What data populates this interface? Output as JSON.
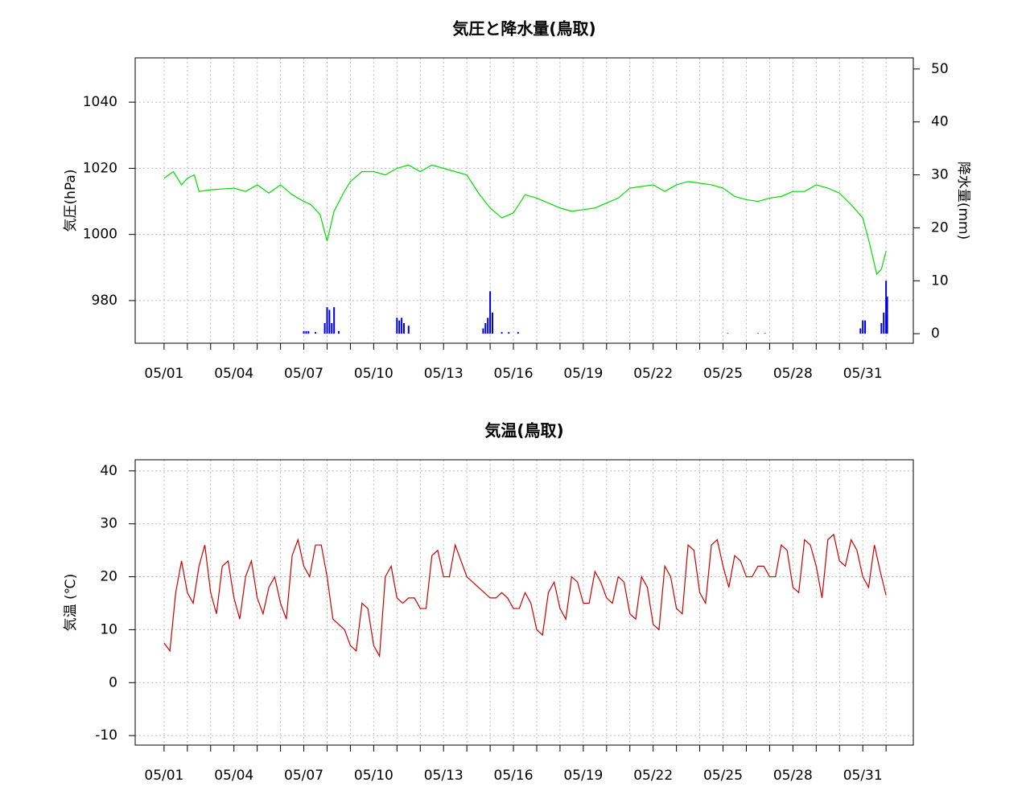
{
  "chart_data": [
    {
      "type": "line",
      "title": "気圧と降水量(鳥取)",
      "ylabel": "気圧(hPa)",
      "y2label": "降水量(mm)",
      "grid": true,
      "xlim": [
        -0.24,
        33.17
      ],
      "ylim": [
        967.1,
        1053.4
      ],
      "y2lim": [
        -1.8,
        52.1
      ],
      "xticks": [
        {
          "value": 1,
          "label": "05/01"
        },
        {
          "value": 2,
          "label": null
        },
        {
          "value": 3,
          "label": null
        },
        {
          "value": 4,
          "label": "05/04"
        },
        {
          "value": 5,
          "label": null
        },
        {
          "value": 6,
          "label": null
        },
        {
          "value": 7,
          "label": "05/07"
        },
        {
          "value": 8,
          "label": null
        },
        {
          "value": 9,
          "label": null
        },
        {
          "value": 10,
          "label": "05/10"
        },
        {
          "value": 11,
          "label": null
        },
        {
          "value": 12,
          "label": null
        },
        {
          "value": 13,
          "label": "05/13"
        },
        {
          "value": 14,
          "label": null
        },
        {
          "value": 15,
          "label": null
        },
        {
          "value": 16,
          "label": "05/16"
        },
        {
          "value": 17,
          "label": null
        },
        {
          "value": 18,
          "label": null
        },
        {
          "value": 19,
          "label": "05/19"
        },
        {
          "value": 20,
          "label": null
        },
        {
          "value": 21,
          "label": null
        },
        {
          "value": 22,
          "label": "05/22"
        },
        {
          "value": 23,
          "label": null
        },
        {
          "value": 24,
          "label": null
        },
        {
          "value": 25,
          "label": "05/25"
        },
        {
          "value": 26,
          "label": null
        },
        {
          "value": 27,
          "label": null
        },
        {
          "value": 28,
          "label": "05/28"
        },
        {
          "value": 29,
          "label": null
        },
        {
          "value": 30,
          "label": null
        },
        {
          "value": 31,
          "label": "05/31"
        },
        {
          "value": 32,
          "label": null
        }
      ],
      "yticks": [
        980,
        1000,
        1020,
        1040
      ],
      "y2ticks": [
        0,
        10,
        20,
        30,
        40,
        50
      ],
      "series": [
        {
          "type": "line",
          "color": "#00dd00",
          "x": [
            1,
            1.4,
            1.75,
            2,
            2.3,
            2.5,
            3,
            4,
            4.5,
            5,
            5.5,
            6,
            6.5,
            7,
            7.3,
            7.7,
            8,
            8.3,
            8.7,
            9,
            9.5,
            10,
            10.5,
            11,
            11.5,
            12,
            12.5,
            13,
            13.5,
            14,
            14.5,
            15,
            15.5,
            16,
            16.5,
            17,
            17.5,
            18,
            18.5,
            19,
            19.5,
            20,
            20.5,
            21,
            21.5,
            22,
            22.5,
            23,
            23.5,
            24,
            24.5,
            25,
            25.5,
            26,
            26.5,
            27,
            27.5,
            28,
            28.5,
            29,
            29.5,
            30,
            30.5,
            31,
            31.3,
            31.6,
            31.8,
            32
          ],
          "values": [
            1017,
            1019,
            1015,
            1017,
            1018,
            1013,
            1013.5,
            1014,
            1013,
            1015,
            1012.5,
            1015,
            1012,
            1010,
            1009,
            1006,
            998,
            1007,
            1012.5,
            1016,
            1019,
            1019,
            1018,
            1020,
            1021,
            1019,
            1021,
            1020,
            1019,
            1018,
            1012.5,
            1008,
            1005,
            1006.5,
            1012,
            1011,
            1009.5,
            1008,
            1007,
            1007.5,
            1008,
            1009.5,
            1011,
            1014,
            1014.5,
            1015,
            1013,
            1015,
            1016,
            1015.5,
            1015,
            1014,
            1011.5,
            1010.5,
            1010,
            1011,
            1011.5,
            1013,
            1013,
            1015,
            1014,
            1012.5,
            1009,
            1005,
            997,
            988,
            989.5,
            995
          ]
        },
        {
          "type": "bar",
          "axis": "y2",
          "color": "#0000dd",
          "x": [
            7.0,
            7.1,
            7.2,
            7.5,
            7.9,
            8.0,
            8.1,
            8.2,
            8.3,
            8.5,
            11.0,
            11.1,
            11.2,
            11.3,
            11.5,
            14.7,
            14.8,
            14.9,
            15.0,
            15.1,
            15.5,
            15.8,
            16.2,
            25.2,
            26.5,
            26.8,
            30.9,
            31.0,
            31.1,
            31.8,
            31.9,
            32.0,
            32.05
          ],
          "values": [
            0.5,
            0.5,
            0.5,
            0.3,
            2,
            5,
            4.5,
            2,
            5,
            0.5,
            3,
            2.5,
            3,
            2,
            1.5,
            1,
            2,
            3,
            8,
            4,
            0.3,
            0.3,
            0.3,
            0.1,
            0.1,
            0.1,
            1,
            2.5,
            2.5,
            2,
            4,
            10,
            7
          ]
        }
      ]
    },
    {
      "type": "line",
      "title": "気温(鳥取)",
      "ylabel": "気温 (℃)",
      "grid": true,
      "xlim": [
        -0.24,
        33.17
      ],
      "ylim": [
        -11.8,
        42.1
      ],
      "xticks": [
        {
          "value": 1,
          "label": "05/01"
        },
        {
          "value": 2,
          "label": null
        },
        {
          "value": 3,
          "label": null
        },
        {
          "value": 4,
          "label": "05/04"
        },
        {
          "value": 5,
          "label": null
        },
        {
          "value": 6,
          "label": null
        },
        {
          "value": 7,
          "label": "05/07"
        },
        {
          "value": 8,
          "label": null
        },
        {
          "value": 9,
          "label": null
        },
        {
          "value": 10,
          "label": "05/10"
        },
        {
          "value": 11,
          "label": null
        },
        {
          "value": 12,
          "label": null
        },
        {
          "value": 13,
          "label": "05/13"
        },
        {
          "value": 14,
          "label": null
        },
        {
          "value": 15,
          "label": null
        },
        {
          "value": 16,
          "label": "05/16"
        },
        {
          "value": 17,
          "label": null
        },
        {
          "value": 18,
          "label": null
        },
        {
          "value": 19,
          "label": "05/19"
        },
        {
          "value": 20,
          "label": null
        },
        {
          "value": 21,
          "label": null
        },
        {
          "value": 22,
          "label": "05/22"
        },
        {
          "value": 23,
          "label": null
        },
        {
          "value": 24,
          "label": null
        },
        {
          "value": 25,
          "label": "05/25"
        },
        {
          "value": 26,
          "label": null
        },
        {
          "value": 27,
          "label": null
        },
        {
          "value": 28,
          "label": "05/28"
        },
        {
          "value": 29,
          "label": null
        },
        {
          "value": 30,
          "label": null
        },
        {
          "value": 31,
          "label": "05/31"
        },
        {
          "value": 32,
          "label": null
        }
      ],
      "yticks": [
        -10,
        0,
        10,
        20,
        30,
        40
      ],
      "series": [
        {
          "type": "line",
          "color": "#cc0000",
          "x": [
            1,
            1.25,
            1.5,
            1.75,
            2,
            2.25,
            2.5,
            2.75,
            3,
            3.25,
            3.5,
            3.75,
            4,
            4.25,
            4.5,
            4.75,
            5,
            5.25,
            5.5,
            5.75,
            6,
            6.25,
            6.5,
            6.75,
            7,
            7.25,
            7.5,
            7.75,
            8,
            8.25,
            8.5,
            8.75,
            9,
            9.25,
            9.5,
            9.75,
            10,
            10.25,
            10.5,
            10.75,
            11,
            11.25,
            11.5,
            11.75,
            12,
            12.25,
            12.5,
            12.75,
            13,
            13.25,
            13.5,
            13.75,
            14,
            14.25,
            14.5,
            14.75,
            15,
            15.25,
            15.5,
            15.75,
            16,
            16.25,
            16.5,
            16.75,
            17,
            17.25,
            17.5,
            17.75,
            18,
            18.25,
            18.5,
            18.75,
            19,
            19.25,
            19.5,
            19.75,
            20,
            20.25,
            20.5,
            20.75,
            21,
            21.25,
            21.5,
            21.75,
            22,
            22.25,
            22.5,
            22.75,
            23,
            23.25,
            23.5,
            23.75,
            24,
            24.25,
            24.5,
            24.75,
            25,
            25.25,
            25.5,
            25.75,
            26,
            26.25,
            26.5,
            26.75,
            27,
            27.25,
            27.5,
            27.75,
            28,
            28.25,
            28.5,
            28.75,
            29,
            29.25,
            29.5,
            29.75,
            30,
            30.25,
            30.5,
            30.75,
            31,
            31.25,
            31.5,
            31.75,
            32
          ],
          "values": [
            7.5,
            6,
            17,
            23,
            17,
            15,
            22,
            26,
            17,
            13,
            22,
            23,
            16,
            12,
            20,
            23,
            16,
            13,
            18,
            20,
            15,
            12,
            24,
            27,
            22,
            20,
            26,
            26,
            20,
            12,
            11,
            10,
            7,
            6,
            15,
            14,
            7,
            5,
            20,
            22,
            16,
            15,
            16,
            16,
            14,
            14,
            24,
            25,
            20,
            20,
            26,
            23,
            20,
            19,
            18,
            17,
            16,
            16,
            17,
            16,
            14,
            14,
            17,
            15,
            10,
            9,
            17,
            19,
            14,
            12,
            20,
            19,
            15,
            15,
            21,
            19,
            16,
            15,
            20,
            19,
            13,
            12,
            20,
            18,
            11,
            10,
            22,
            20,
            14,
            13,
            26,
            25,
            17,
            15,
            26,
            27,
            22,
            18,
            24,
            23,
            20,
            20,
            22,
            22,
            20,
            20,
            26,
            25,
            18,
            17,
            27,
            26,
            22,
            16,
            27,
            28,
            23,
            22,
            27,
            25,
            20,
            18,
            26,
            21,
            16.5
          ]
        }
      ]
    }
  ]
}
